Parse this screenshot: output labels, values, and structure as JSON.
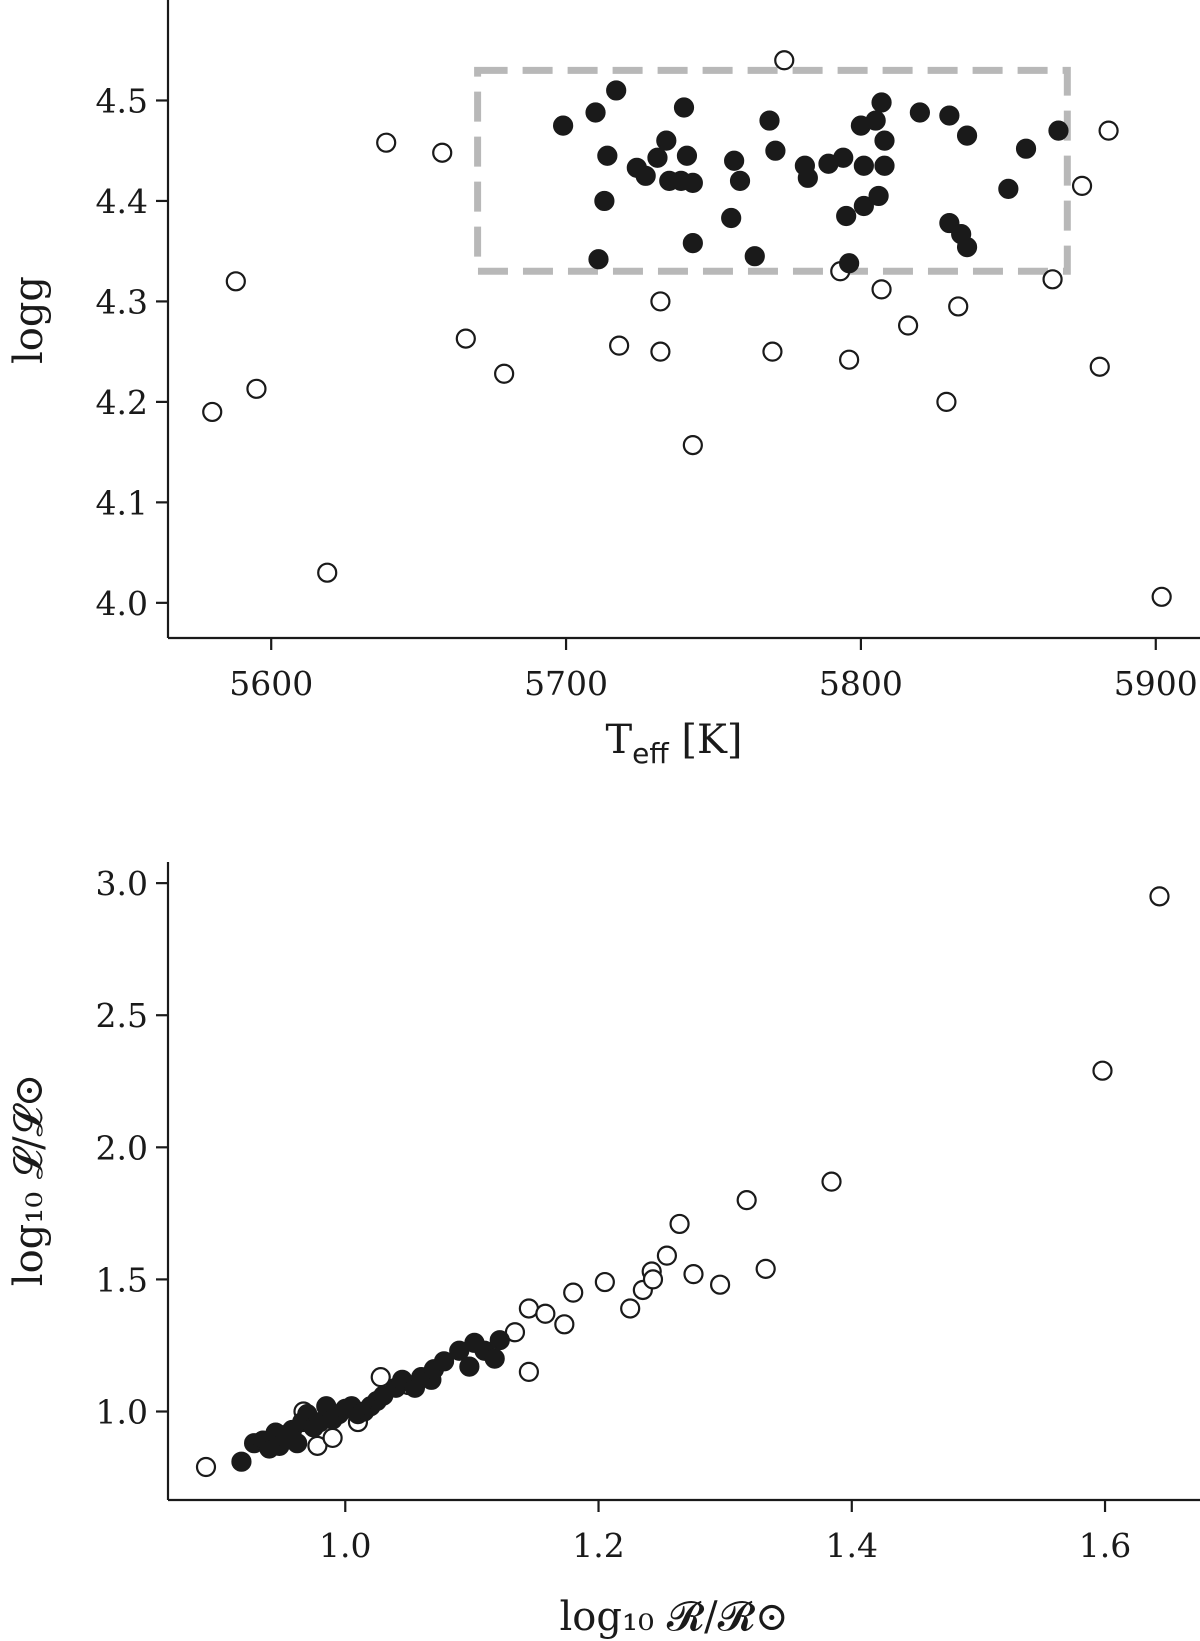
{
  "chart_data": [
    {
      "type": "scatter",
      "title": "",
      "xlabel": {
        "main": "T",
        "sub": "eff",
        "unit": " [K]"
      },
      "ylabel": "logg",
      "xlim": [
        5565,
        5915
      ],
      "ylim": [
        3.965,
        4.6
      ],
      "x_ticks": [
        "5600",
        "5700",
        "5800",
        "5900"
      ],
      "x_tick_values": [
        5600,
        5700,
        5800,
        5900
      ],
      "y_ticks": [
        "4.0",
        "4.1",
        "4.2",
        "4.3",
        "4.4",
        "4.5"
      ],
      "y_tick_values": [
        4.0,
        4.1,
        4.2,
        4.3,
        4.4,
        4.5
      ],
      "grid": false,
      "highlight_box": {
        "x": [
          5670,
          5870
        ],
        "y": [
          4.33,
          4.53
        ],
        "style": "dashed",
        "color": "#b8b8b8"
      },
      "series": [
        {
          "marker": "open-circle",
          "points": [
            [
              5580,
              4.19
            ],
            [
              5588,
              4.32
            ],
            [
              5595,
              4.213
            ],
            [
              5619,
              4.03
            ],
            [
              5639,
              4.458
            ],
            [
              5658,
              4.448
            ],
            [
              5666,
              4.263
            ],
            [
              5679,
              4.228
            ],
            [
              5718,
              4.256
            ],
            [
              5732,
              4.3
            ],
            [
              5732,
              4.25
            ],
            [
              5743,
              4.157
            ],
            [
              5770,
              4.25
            ],
            [
              5774,
              4.54
            ],
            [
              5793,
              4.33
            ],
            [
              5796,
              4.242
            ],
            [
              5807,
              4.312
            ],
            [
              5816,
              4.276
            ],
            [
              5829,
              4.2
            ],
            [
              5833,
              4.295
            ],
            [
              5865,
              4.322
            ],
            [
              5875,
              4.415
            ],
            [
              5881,
              4.235
            ],
            [
              5884,
              4.47
            ],
            [
              5902,
              4.006
            ]
          ]
        },
        {
          "marker": "filled-circle",
          "points": [
            [
              5699,
              4.475
            ],
            [
              5710,
              4.488
            ],
            [
              5711,
              4.342
            ],
            [
              5713,
              4.4
            ],
            [
              5714,
              4.445
            ],
            [
              5717,
              4.51
            ],
            [
              5724,
              4.433
            ],
            [
              5727,
              4.425
            ],
            [
              5731,
              4.443
            ],
            [
              5734,
              4.46
            ],
            [
              5735,
              4.42
            ],
            [
              5739,
              4.42
            ],
            [
              5740,
              4.493
            ],
            [
              5741,
              4.445
            ],
            [
              5743,
              4.418
            ],
            [
              5743,
              4.358
            ],
            [
              5756,
              4.383
            ],
            [
              5757,
              4.44
            ],
            [
              5759,
              4.42
            ],
            [
              5764,
              4.345
            ],
            [
              5769,
              4.48
            ],
            [
              5771,
              4.45
            ],
            [
              5781,
              4.435
            ],
            [
              5782,
              4.423
            ],
            [
              5789,
              4.437
            ],
            [
              5794,
              4.443
            ],
            [
              5795,
              4.385
            ],
            [
              5796,
              4.338
            ],
            [
              5800,
              4.475
            ],
            [
              5801,
              4.395
            ],
            [
              5801,
              4.435
            ],
            [
              5805,
              4.48
            ],
            [
              5806,
              4.405
            ],
            [
              5807,
              4.498
            ],
            [
              5808,
              4.46
            ],
            [
              5808,
              4.435
            ],
            [
              5820,
              4.488
            ],
            [
              5830,
              4.485
            ],
            [
              5830,
              4.378
            ],
            [
              5834,
              4.367
            ],
            [
              5836,
              4.465
            ],
            [
              5836,
              4.354
            ],
            [
              5850,
              4.412
            ],
            [
              5856,
              4.452
            ],
            [
              5867,
              4.47
            ]
          ]
        }
      ]
    },
    {
      "type": "scatter",
      "title": "",
      "xlabel": "log₁₀ 𝓡/𝓡⊙",
      "ylabel": "log₁₀ 𝓛/𝓛⊙",
      "xlim": [
        0.86,
        1.675
      ],
      "ylim": [
        0.665,
        3.08
      ],
      "x_ticks": [
        "1.0",
        "1.2",
        "1.4",
        "1.6"
      ],
      "x_tick_values": [
        1.0,
        1.2,
        1.4,
        1.6
      ],
      "y_ticks": [
        "1.0",
        "1.5",
        "2.0",
        "2.5",
        "3.0"
      ],
      "y_tick_values": [
        1.0,
        1.5,
        2.0,
        2.5,
        3.0
      ],
      "grid": false,
      "series": [
        {
          "marker": "open-circle",
          "points": [
            [
              0.89,
              0.79
            ],
            [
              0.95,
              0.91
            ],
            [
              0.967,
              1.0
            ],
            [
              0.978,
              0.87
            ],
            [
              0.99,
              0.9
            ],
            [
              1.01,
              0.96
            ],
            [
              1.028,
              1.13
            ],
            [
              1.05,
              1.1
            ],
            [
              1.134,
              1.3
            ],
            [
              1.145,
              1.39
            ],
            [
              1.145,
              1.15
            ],
            [
              1.158,
              1.37
            ],
            [
              1.173,
              1.33
            ],
            [
              1.18,
              1.45
            ],
            [
              1.205,
              1.49
            ],
            [
              1.225,
              1.39
            ],
            [
              1.235,
              1.46
            ],
            [
              1.242,
              1.53
            ],
            [
              1.243,
              1.5
            ],
            [
              1.254,
              1.59
            ],
            [
              1.264,
              1.71
            ],
            [
              1.275,
              1.52
            ],
            [
              1.296,
              1.48
            ],
            [
              1.317,
              1.8
            ],
            [
              1.332,
              1.54
            ],
            [
              1.384,
              1.87
            ],
            [
              1.598,
              2.29
            ],
            [
              1.643,
              2.95
            ]
          ]
        },
        {
          "marker": "filled-circle",
          "points": [
            [
              0.918,
              0.81
            ],
            [
              0.928,
              0.88
            ],
            [
              0.935,
              0.89
            ],
            [
              0.94,
              0.86
            ],
            [
              0.945,
              0.92
            ],
            [
              0.948,
              0.87
            ],
            [
              0.953,
              0.9
            ],
            [
              0.958,
              0.93
            ],
            [
              0.962,
              0.88
            ],
            [
              0.966,
              0.96
            ],
            [
              0.97,
              0.99
            ],
            [
              0.975,
              0.94
            ],
            [
              0.98,
              0.96
            ],
            [
              0.985,
              1.02
            ],
            [
              0.99,
              0.97
            ],
            [
              0.995,
              0.99
            ],
            [
              1.0,
              1.01
            ],
            [
              1.005,
              1.02
            ],
            [
              1.01,
              0.99
            ],
            [
              1.015,
              1.0
            ],
            [
              1.02,
              1.02
            ],
            [
              1.025,
              1.04
            ],
            [
              1.03,
              1.06
            ],
            [
              1.04,
              1.09
            ],
            [
              1.045,
              1.12
            ],
            [
              1.055,
              1.09
            ],
            [
              1.06,
              1.13
            ],
            [
              1.068,
              1.12
            ],
            [
              1.07,
              1.16
            ],
            [
              1.078,
              1.19
            ],
            [
              1.09,
              1.23
            ],
            [
              1.098,
              1.17
            ],
            [
              1.102,
              1.26
            ],
            [
              1.11,
              1.23
            ],
            [
              1.118,
              1.2
            ],
            [
              1.122,
              1.27
            ]
          ]
        }
      ]
    }
  ]
}
